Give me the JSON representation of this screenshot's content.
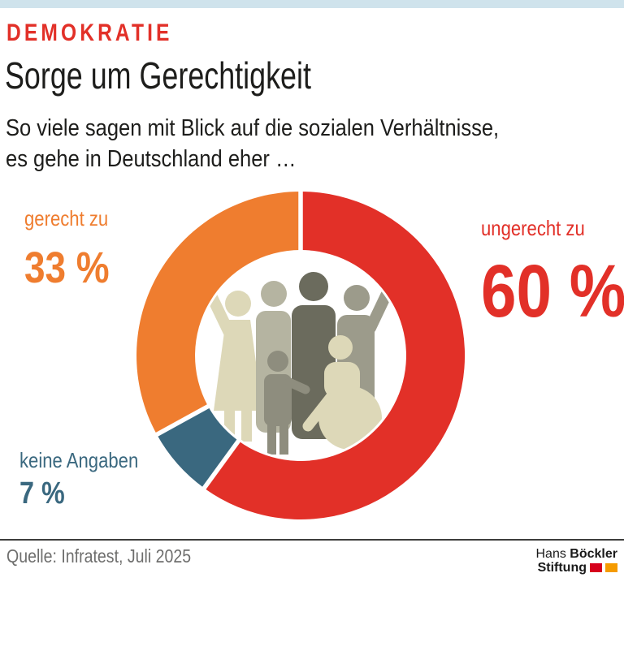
{
  "page": {
    "background": "#ffffff",
    "topbar_color": "#cfe3ec"
  },
  "header": {
    "kicker": "DEMOKRATIE",
    "kicker_color": "#e23028",
    "title": "Sorge um Gerechtigkeit",
    "subtitle_line1": "So viele sagen mit Blick auf die sozialen Verhältnisse,",
    "subtitle_line2": "es gehe in Deutschland eher …"
  },
  "chart_data": {
    "type": "pie",
    "variant": "donut",
    "title": "Sorge um Gerechtigkeit",
    "question": "So viele sagen mit Blick auf die sozialen Verhältnisse, es gehe in Deutschland eher …",
    "unit": "%",
    "start_angle_deg": 0,
    "direction": "clockwise",
    "slices": [
      {
        "label": "ungerecht zu",
        "value": 60,
        "display": "60 %",
        "color": "#e23028",
        "label_position": "right"
      },
      {
        "label": "keine Angaben",
        "value": 7,
        "display": "7 %",
        "color": "#3a687f",
        "label_position": "bottom-left"
      },
      {
        "label": "gerecht zu",
        "value": 33,
        "display": "33 %",
        "color": "#ef7d2f",
        "label_position": "top-left"
      }
    ],
    "segment_gap_color": "#ffffff",
    "center_graphic": "group-of-people-illustration",
    "legend_position": "around-chart"
  },
  "footer": {
    "source": "Quelle: Infratest, Juli 2025",
    "logo": {
      "name_regular": "Hans",
      "name_bold": "Böckler",
      "line2_bold": "Stiftung",
      "square1_color": "#d6001c",
      "square2_color": "#f59b00"
    }
  }
}
